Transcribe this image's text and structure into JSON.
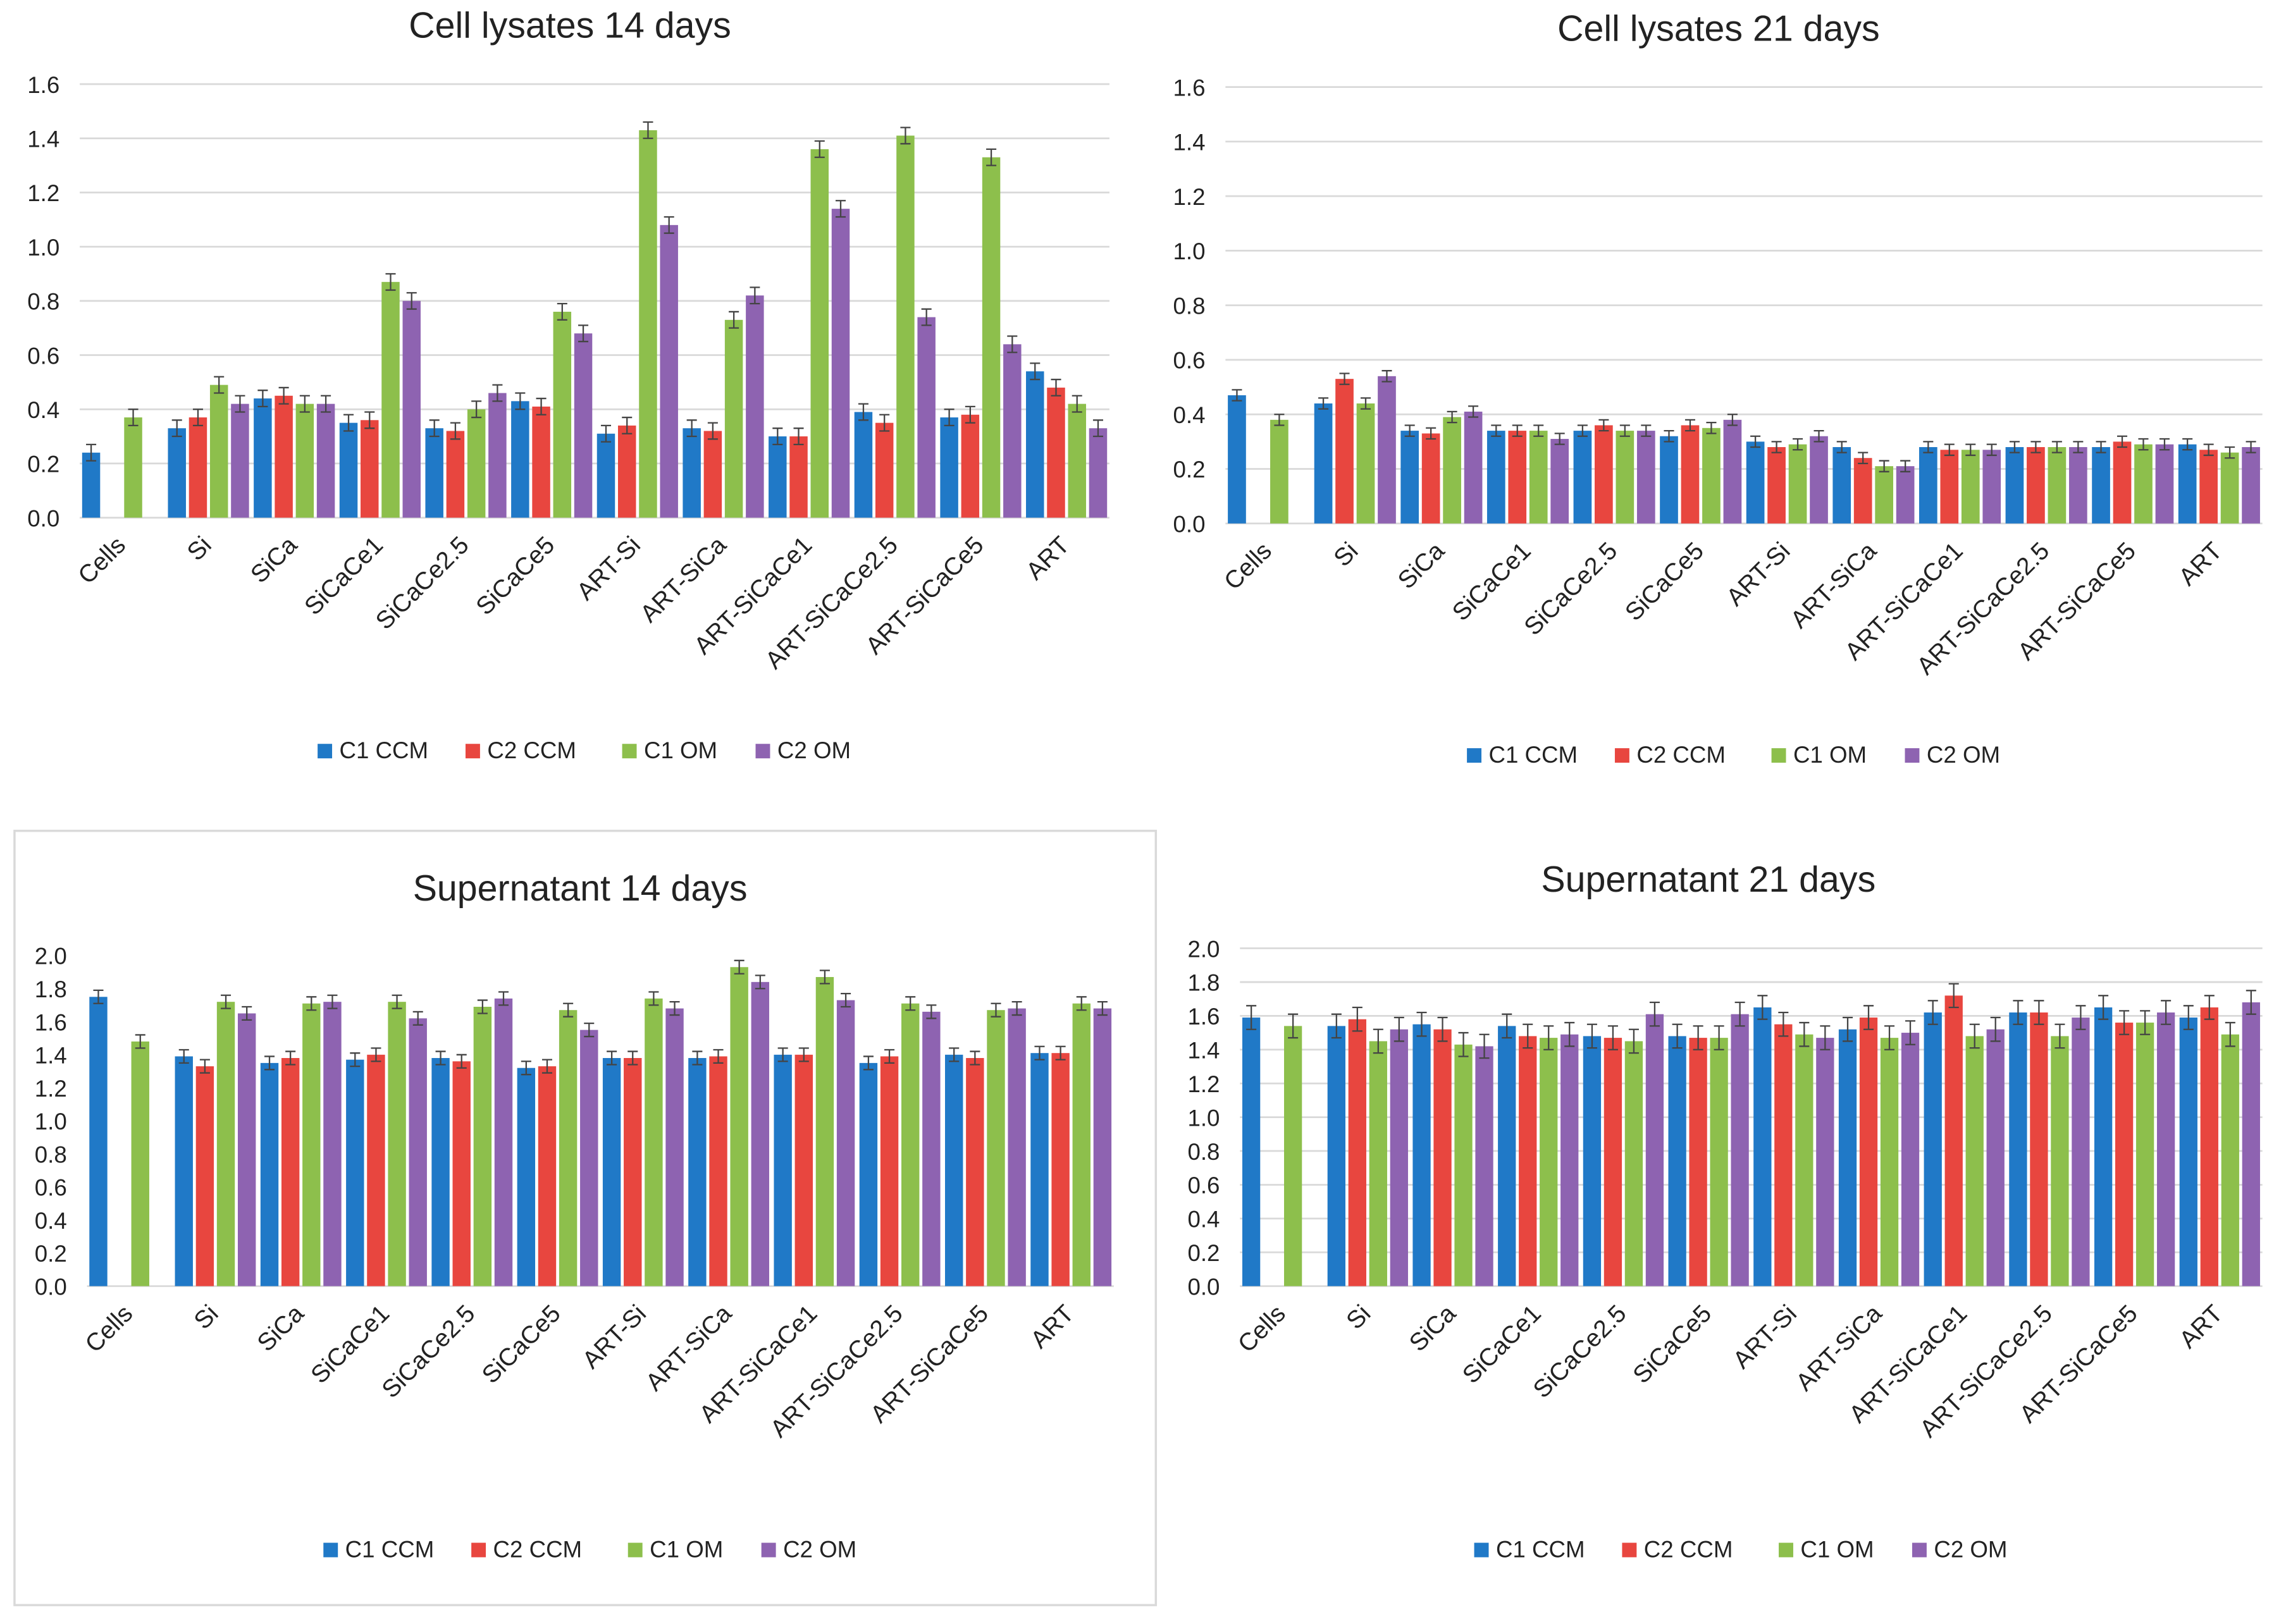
{
  "colors": {
    "C1 CCM": "#2079c7",
    "C2 CCM": "#e8463f",
    "C1 OM": "#8dbf4c",
    "C2 OM": "#8e63b1",
    "grid": "#d9d9d9",
    "error": "#444444"
  },
  "chart_data": [
    {
      "type": "bar",
      "title": "Cell lysates 14 days",
      "xlabel": "",
      "ylabel": "",
      "ylim": [
        0,
        1.6
      ],
      "yticks": [
        "0.0",
        "0.2",
        "0.4",
        "0.6",
        "0.8",
        "1.0",
        "1.2",
        "1.4",
        "1.6"
      ],
      "grid": true,
      "legend": "bottom",
      "categories": [
        "Cells",
        "Si",
        "SiCa",
        "SiCaCe1",
        "SiCaCe2.5",
        "SiCaCe5",
        "ART-Si",
        "ART-SiCa",
        "ART-SiCaCe1",
        "ART-SiCaCe2.5",
        "ART-SiCaCe5",
        "ART"
      ],
      "error_approx": 0.03,
      "series": [
        {
          "name": "C1 CCM",
          "values": [
            0.24,
            0.33,
            0.44,
            0.35,
            0.33,
            0.43,
            0.31,
            0.33,
            0.3,
            0.39,
            0.37,
            0.54
          ]
        },
        {
          "name": "C2 CCM",
          "values": [
            null,
            0.37,
            0.45,
            0.36,
            0.32,
            0.41,
            0.34,
            0.32,
            0.3,
            0.35,
            0.38,
            0.48
          ]
        },
        {
          "name": "C1 OM",
          "values": [
            0.37,
            0.49,
            0.42,
            0.87,
            0.4,
            0.76,
            1.43,
            0.73,
            1.36,
            1.41,
            1.33,
            0.42
          ]
        },
        {
          "name": "C2 OM",
          "values": [
            null,
            0.42,
            0.42,
            0.8,
            0.46,
            0.68,
            1.08,
            0.82,
            1.14,
            0.74,
            0.64,
            0.33
          ]
        }
      ]
    },
    {
      "type": "bar",
      "title": "Cell lysates 21 days",
      "xlabel": "",
      "ylabel": "",
      "ylim": [
        0,
        1.6
      ],
      "yticks": [
        "0.0",
        "0.2",
        "0.4",
        "0.6",
        "0.8",
        "1.0",
        "1.2",
        "1.4",
        "1.6"
      ],
      "grid": true,
      "legend": "bottom",
      "categories": [
        "Cells",
        "Si",
        "SiCa",
        "SiCaCe1",
        "SiCaCe2.5",
        "SiCaCe5",
        "ART-Si",
        "ART-SiCa",
        "ART-SiCaCe1",
        "ART-SiCaCe2.5",
        "ART-SiCaCe5",
        "ART"
      ],
      "error_approx": 0.02,
      "series": [
        {
          "name": "C1 CCM",
          "values": [
            0.47,
            0.44,
            0.34,
            0.34,
            0.34,
            0.32,
            0.3,
            0.28,
            0.28,
            0.28,
            0.28,
            0.29
          ]
        },
        {
          "name": "C2 CCM",
          "values": [
            null,
            0.53,
            0.33,
            0.34,
            0.36,
            0.36,
            0.28,
            0.24,
            0.27,
            0.28,
            0.3,
            0.27
          ]
        },
        {
          "name": "C1 OM",
          "values": [
            0.38,
            0.44,
            0.39,
            0.34,
            0.34,
            0.35,
            0.29,
            0.21,
            0.27,
            0.28,
            0.29,
            0.26
          ]
        },
        {
          "name": "C2 OM",
          "values": [
            null,
            0.54,
            0.41,
            0.31,
            0.34,
            0.38,
            0.32,
            0.21,
            0.27,
            0.28,
            0.29,
            0.28
          ]
        }
      ]
    },
    {
      "type": "bar",
      "title": "Supernatant 14 days",
      "xlabel": "",
      "ylabel": "",
      "ylim": [
        0,
        2.0
      ],
      "yticks": [
        "0.0",
        "0.2",
        "0.4",
        "0.6",
        "0.8",
        "1.0",
        "1.2",
        "1.4",
        "1.6",
        "1.8",
        "2.0"
      ],
      "grid": false,
      "legend": "bottom",
      "categories": [
        "Cells",
        "Si",
        "SiCa",
        "SiCaCe1",
        "SiCaCe2.5",
        "SiCaCe5",
        "ART-Si",
        "ART-SiCa",
        "ART-SiCaCe1",
        "ART-SiCaCe2.5",
        "ART-SiCaCe5",
        "ART"
      ],
      "error_approx": 0.04,
      "series": [
        {
          "name": "C1 CCM",
          "values": [
            1.75,
            1.39,
            1.35,
            1.37,
            1.38,
            1.32,
            1.38,
            1.38,
            1.4,
            1.35,
            1.4,
            1.41
          ]
        },
        {
          "name": "C2 CCM",
          "values": [
            null,
            1.33,
            1.38,
            1.4,
            1.36,
            1.33,
            1.38,
            1.39,
            1.4,
            1.39,
            1.38,
            1.41
          ]
        },
        {
          "name": "C1 OM",
          "values": [
            1.48,
            1.72,
            1.71,
            1.72,
            1.69,
            1.67,
            1.74,
            1.93,
            1.87,
            1.71,
            1.67,
            1.71
          ]
        },
        {
          "name": "C2 OM",
          "values": [
            null,
            1.65,
            1.72,
            1.62,
            1.74,
            1.55,
            1.68,
            1.84,
            1.73,
            1.66,
            1.68,
            1.68
          ]
        }
      ]
    },
    {
      "type": "bar",
      "title": "Supernatant 21 days",
      "xlabel": "",
      "ylabel": "",
      "ylim": [
        0,
        2.0
      ],
      "yticks": [
        "0.0",
        "0.2",
        "0.4",
        "0.6",
        "0.8",
        "1.0",
        "1.2",
        "1.4",
        "1.6",
        "1.8",
        "2.0"
      ],
      "grid": true,
      "legend": "bottom",
      "categories": [
        "Cells",
        "Si",
        "SiCa",
        "SiCaCe1",
        "SiCaCe2.5",
        "SiCaCe5",
        "ART-Si",
        "ART-SiCa",
        "ART-SiCaCe1",
        "ART-SiCaCe2.5",
        "ART-SiCaCe5",
        "ART"
      ],
      "error_approx": 0.07,
      "series": [
        {
          "name": "C1 CCM",
          "values": [
            1.59,
            1.54,
            1.55,
            1.54,
            1.48,
            1.48,
            1.65,
            1.52,
            1.62,
            1.62,
            1.65,
            1.59
          ]
        },
        {
          "name": "C2 CCM",
          "values": [
            null,
            1.58,
            1.52,
            1.48,
            1.47,
            1.47,
            1.55,
            1.59,
            1.72,
            1.62,
            1.56,
            1.65
          ]
        },
        {
          "name": "C1 OM",
          "values": [
            1.54,
            1.45,
            1.43,
            1.47,
            1.45,
            1.47,
            1.49,
            1.47,
            1.48,
            1.48,
            1.56,
            1.49
          ]
        },
        {
          "name": "C2 OM",
          "values": [
            null,
            1.52,
            1.42,
            1.49,
            1.61,
            1.61,
            1.47,
            1.5,
            1.52,
            1.59,
            1.62,
            1.68
          ]
        }
      ]
    }
  ]
}
